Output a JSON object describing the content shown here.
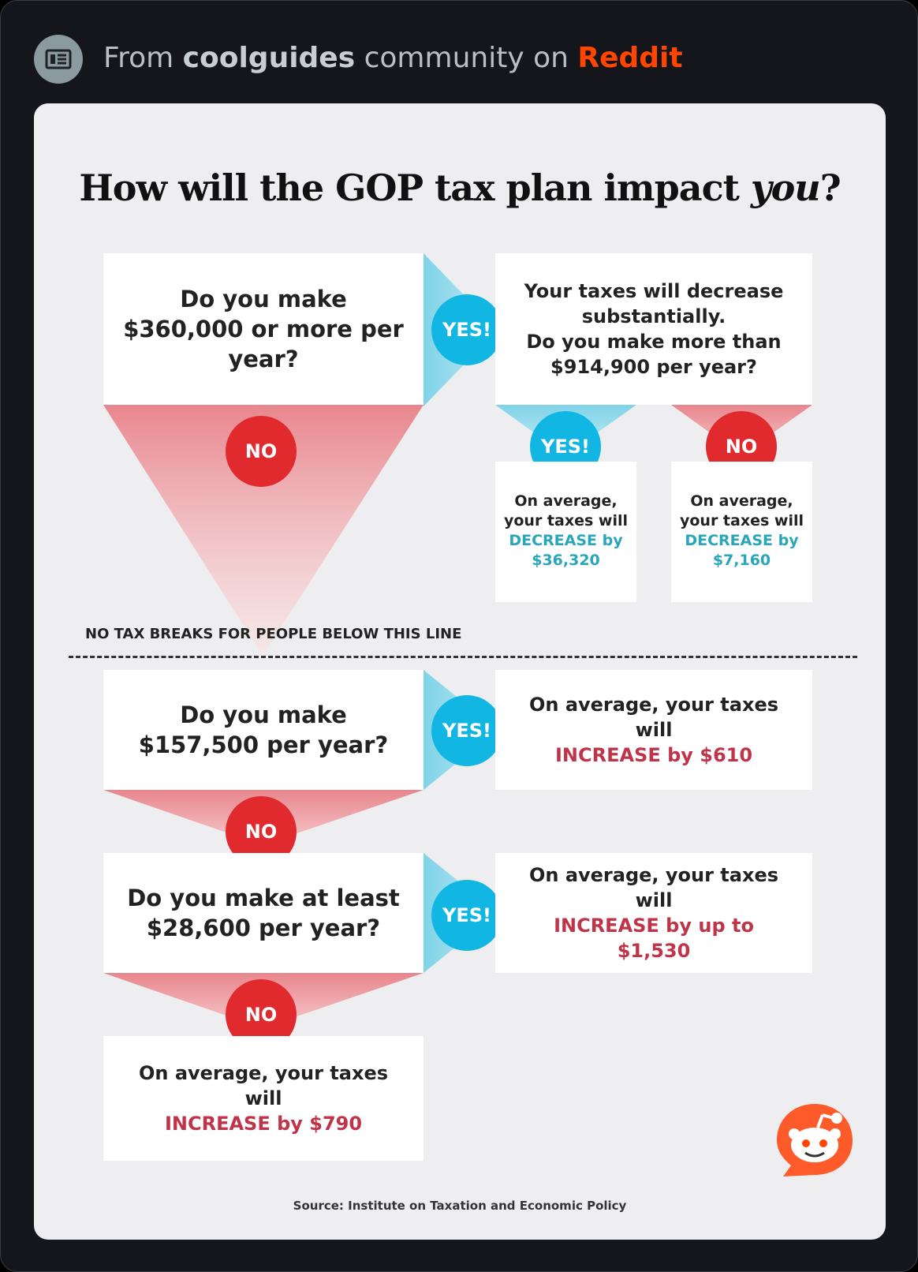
{
  "header": {
    "prefix": "From",
    "community": "coolguides",
    "middle": "community on",
    "brand": "Reddit"
  },
  "infographic": {
    "title_main": "How will the GOP tax plan impact",
    "title_emphasis": "you",
    "title_end": "?",
    "q1": "Do you make $360,000 or more per year?",
    "q1_yes_result_line1": "Your taxes will decrease substantially.",
    "q1_yes_result_line2": "Do you make more than $914,900 per year?",
    "yes_label": "YES!",
    "no_label": "NO",
    "outcome_a_prefix": "On average, your taxes will",
    "outcome_a_emphasis": "DECREASE by $36,320",
    "outcome_b_prefix": "On average, your taxes will",
    "outcome_b_emphasis": "DECREASE by $7,160",
    "below_line_label": "NO TAX BREAKS FOR PEOPLE BELOW THIS LINE",
    "q2": "Do you make $157,500 per year?",
    "q2_yes_prefix": "On average, your taxes will",
    "q2_yes_emphasis": "INCREASE by $610",
    "q3": "Do you make at least $28,600 per year?",
    "q3_yes_prefix": "On average, your taxes will",
    "q3_yes_emphasis": "INCREASE by up to $1,530",
    "final_prefix": "On average, your taxes will",
    "final_emphasis": "INCREASE by $790",
    "source": "Source: Institute on Taxation and Economic Policy"
  },
  "colors": {
    "yes": "#12b6e3",
    "no": "#e02a2e",
    "decrease": "#2aa6bb",
    "increase": "#c0344a",
    "reddit": "#ff4500"
  },
  "icons": [
    "newspaper-icon",
    "reddit-snoo-icon"
  ]
}
